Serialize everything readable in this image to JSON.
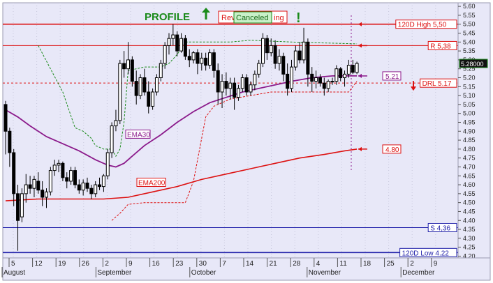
{
  "chart_data": {
    "type": "candlestick",
    "title": "",
    "annotations": {
      "profile": "PROFILE",
      "signal_old": "Rev",
      "signal_old_tail": "ing",
      "canceled": "Canceled",
      "exclaim": "!"
    },
    "colors": {
      "background": "#e8e8f8",
      "grid": "#c8c8dc",
      "ema30": "#8b1a8b",
      "ema200": "#dd1111",
      "resistance": "#dd1111",
      "support": "#2222aa",
      "green": "#1a8a1a",
      "candle": "#000000"
    },
    "ylim": [
      4.19,
      5.62
    ],
    "y_ticks": [
      4.2,
      4.25,
      4.3,
      4.35,
      4.4,
      4.45,
      4.5,
      4.55,
      4.6,
      4.65,
      4.7,
      4.75,
      4.8,
      4.85,
      4.9,
      4.95,
      5.0,
      5.05,
      5.1,
      5.15,
      5.2,
      5.25,
      5.3,
      5.35,
      5.4,
      5.45,
      5.5,
      5.55,
      5.6
    ],
    "x_ticks": [
      "5",
      "12",
      "19",
      "26",
      "2",
      "9",
      "16",
      "23",
      "30",
      "7",
      "14",
      "21",
      "28",
      "4",
      "11",
      "18",
      "25",
      "2",
      "9"
    ],
    "x_month_labels": [
      {
        "label": "August",
        "tick": 0
      },
      {
        "label": "September",
        "tick": 4
      },
      {
        "label": "October",
        "tick": 8
      },
      {
        "label": "November",
        "tick": 13
      },
      {
        "label": "December",
        "tick": 17
      }
    ],
    "levels": [
      {
        "name": "120D High",
        "label": "120D High 5,50",
        "value": 5.5,
        "style": "solid",
        "color": "#dd1111"
      },
      {
        "name": "R",
        "label": "R 5,38",
        "value": 5.38,
        "style": "solid",
        "color": "#dd1111"
      },
      {
        "name": "DRL",
        "label": "DRL 5.17",
        "value": 5.17,
        "style": "dashed",
        "color": "#dd1111"
      },
      {
        "name": "S",
        "label": "S 4,36",
        "value": 4.36,
        "style": "solid",
        "color": "#2222aa"
      },
      {
        "name": "120D Low",
        "label": "120D Low 4.22",
        "value": 4.22,
        "style": "solid",
        "color": "#2222aa"
      }
    ],
    "value_tags": [
      {
        "label": "5.21",
        "value": 5.21,
        "color": "#8b1a8b"
      },
      {
        "label": "4.80",
        "value": 4.8,
        "color": "#dd1111"
      }
    ],
    "last_price": {
      "label": "5.28000",
      "value": 5.28
    },
    "series_labels": [
      {
        "label": "EMA30",
        "value": 4.88
      },
      {
        "label": "EMA200",
        "value": 4.61
      }
    ],
    "ohlc": [
      [
        5.05,
        5.07,
        4.77,
        4.9
      ],
      [
        4.9,
        4.92,
        4.7,
        4.78
      ],
      [
        4.78,
        4.8,
        4.48,
        4.55
      ],
      [
        4.55,
        4.6,
        4.23,
        4.4
      ],
      [
        4.42,
        4.58,
        4.39,
        4.55
      ],
      [
        4.55,
        4.66,
        4.5,
        4.6
      ],
      [
        4.6,
        4.65,
        4.55,
        4.58
      ],
      [
        4.58,
        4.65,
        4.53,
        4.63
      ],
      [
        4.62,
        4.67,
        4.55,
        4.57
      ],
      [
        4.57,
        4.62,
        4.48,
        4.53
      ],
      [
        4.53,
        4.58,
        4.47,
        4.56
      ],
      [
        4.56,
        4.7,
        4.54,
        4.68
      ],
      [
        4.68,
        4.74,
        4.65,
        4.71
      ],
      [
        4.71,
        4.74,
        4.67,
        4.72
      ],
      [
        4.72,
        4.73,
        4.62,
        4.64
      ],
      [
        4.64,
        4.67,
        4.58,
        4.62
      ],
      [
        4.62,
        4.7,
        4.6,
        4.68
      ],
      [
        4.68,
        4.7,
        4.58,
        4.6
      ],
      [
        4.6,
        4.63,
        4.55,
        4.57
      ],
      [
        4.57,
        4.63,
        4.54,
        4.61
      ],
      [
        4.61,
        4.64,
        4.56,
        4.58
      ],
      [
        4.58,
        4.6,
        4.52,
        4.55
      ],
      [
        4.55,
        4.62,
        4.53,
        4.6
      ],
      [
        4.6,
        4.64,
        4.57,
        4.59
      ],
      [
        4.59,
        4.66,
        4.56,
        4.65
      ],
      [
        4.65,
        4.8,
        4.63,
        4.78
      ],
      [
        4.78,
        4.95,
        4.75,
        4.93
      ],
      [
        4.93,
        5.02,
        4.9,
        4.96
      ],
      [
        4.96,
        5.3,
        4.94,
        5.28
      ],
      [
        5.28,
        5.35,
        5.2,
        5.25
      ],
      [
        5.25,
        5.4,
        5.22,
        5.3
      ],
      [
        5.3,
        5.32,
        5.15,
        5.18
      ],
      [
        5.18,
        5.24,
        5.05,
        5.1
      ],
      [
        5.1,
        5.22,
        5.08,
        5.2
      ],
      [
        5.2,
        5.25,
        5.1,
        5.12
      ],
      [
        5.12,
        5.18,
        5.0,
        5.04
      ],
      [
        5.04,
        5.14,
        5.02,
        5.12
      ],
      [
        5.12,
        5.22,
        5.1,
        5.2
      ],
      [
        5.2,
        5.3,
        5.18,
        5.28
      ],
      [
        5.28,
        5.4,
        5.25,
        5.38
      ],
      [
        5.38,
        5.45,
        5.33,
        5.42
      ],
      [
        5.42,
        5.5,
        5.38,
        5.44
      ],
      [
        5.44,
        5.46,
        5.32,
        5.35
      ],
      [
        5.35,
        5.45,
        5.34,
        5.42
      ],
      [
        5.42,
        5.44,
        5.3,
        5.32
      ],
      [
        5.32,
        5.36,
        5.26,
        5.3
      ],
      [
        5.3,
        5.35,
        5.28,
        5.34
      ],
      [
        5.34,
        5.36,
        5.22,
        5.28
      ],
      [
        5.28,
        5.34,
        5.24,
        5.31
      ],
      [
        5.31,
        5.34,
        5.24,
        5.27
      ],
      [
        5.27,
        5.36,
        5.25,
        5.34
      ],
      [
        5.34,
        5.36,
        5.2,
        5.24
      ],
      [
        5.24,
        5.28,
        5.05,
        5.12
      ],
      [
        5.12,
        5.22,
        5.03,
        5.18
      ],
      [
        5.18,
        5.23,
        5.1,
        5.14
      ],
      [
        5.14,
        5.2,
        5.08,
        5.17
      ],
      [
        5.17,
        5.2,
        5.02,
        5.09
      ],
      [
        5.09,
        5.16,
        5.07,
        5.14
      ],
      [
        5.14,
        5.22,
        5.12,
        5.2
      ],
      [
        5.2,
        5.22,
        5.1,
        5.12
      ],
      [
        5.12,
        5.18,
        5.1,
        5.16
      ],
      [
        5.16,
        5.24,
        5.13,
        5.22
      ],
      [
        5.22,
        5.3,
        5.2,
        5.28
      ],
      [
        5.28,
        5.45,
        5.26,
        5.42
      ],
      [
        5.42,
        5.44,
        5.3,
        5.34
      ],
      [
        5.34,
        5.42,
        5.32,
        5.38
      ],
      [
        5.38,
        5.41,
        5.25,
        5.28
      ],
      [
        5.28,
        5.36,
        5.24,
        5.32
      ],
      [
        5.32,
        5.34,
        5.18,
        5.22
      ],
      [
        5.22,
        5.28,
        5.1,
        5.14
      ],
      [
        5.14,
        5.3,
        5.12,
        5.26
      ],
      [
        5.26,
        5.38,
        5.24,
        5.35
      ],
      [
        5.35,
        5.4,
        5.28,
        5.3
      ],
      [
        5.3,
        5.48,
        5.28,
        5.4
      ],
      [
        5.4,
        5.42,
        5.15,
        5.22
      ],
      [
        5.22,
        5.26,
        5.12,
        5.18
      ],
      [
        5.18,
        5.24,
        5.14,
        5.2
      ],
      [
        5.2,
        5.22,
        5.15,
        5.17
      ],
      [
        5.17,
        5.2,
        5.1,
        5.14
      ],
      [
        5.14,
        5.19,
        5.12,
        5.18
      ],
      [
        5.18,
        5.2,
        5.16,
        5.18
      ],
      [
        5.18,
        5.27,
        5.16,
        5.25
      ],
      [
        5.25,
        5.26,
        5.18,
        5.2
      ],
      [
        5.2,
        5.24,
        5.15,
        5.22
      ],
      [
        5.22,
        5.3,
        5.2,
        5.27
      ],
      [
        5.27,
        5.3,
        5.22,
        5.23
      ],
      [
        5.23,
        5.29,
        5.22,
        5.28
      ]
    ],
    "ema30": [
      [
        0,
        5.02
      ],
      [
        3,
        4.98
      ],
      [
        6,
        4.93
      ],
      [
        10,
        4.87
      ],
      [
        14,
        4.83
      ],
      [
        18,
        4.79
      ],
      [
        22,
        4.74
      ],
      [
        25,
        4.71
      ],
      [
        27,
        4.7
      ],
      [
        29,
        4.72
      ],
      [
        31,
        4.76
      ],
      [
        34,
        4.82
      ],
      [
        38,
        4.88
      ],
      [
        42,
        4.95
      ],
      [
        46,
        5.01
      ],
      [
        50,
        5.06
      ],
      [
        54,
        5.09
      ],
      [
        58,
        5.12
      ],
      [
        62,
        5.14
      ],
      [
        66,
        5.16
      ],
      [
        70,
        5.18
      ],
      [
        75,
        5.2
      ],
      [
        80,
        5.21
      ],
      [
        86,
        5.21
      ]
    ],
    "ema200": [
      [
        0,
        4.51
      ],
      [
        8,
        4.52
      ],
      [
        16,
        4.52
      ],
      [
        24,
        4.52
      ],
      [
        30,
        4.53
      ],
      [
        36,
        4.56
      ],
      [
        42,
        4.59
      ],
      [
        48,
        4.63
      ],
      [
        54,
        4.66
      ],
      [
        60,
        4.69
      ],
      [
        66,
        4.72
      ],
      [
        72,
        4.75
      ],
      [
        78,
        4.77
      ],
      [
        83,
        4.79
      ],
      [
        86,
        4.8
      ]
    ],
    "stop_green": [
      [
        8,
        5.38
      ],
      [
        11,
        5.25
      ],
      [
        14,
        5.12
      ],
      [
        17,
        4.92
      ],
      [
        19,
        4.9
      ],
      [
        21,
        4.86
      ],
      [
        22,
        4.82
      ],
      [
        24,
        4.8
      ],
      [
        26,
        4.8
      ],
      [
        27,
        4.76
      ],
      [
        28,
        4.8
      ],
      [
        29,
        4.95
      ],
      [
        30,
        5.24
      ],
      [
        34,
        5.26
      ],
      [
        38,
        5.26
      ],
      [
        40,
        5.28
      ],
      [
        42,
        5.33
      ],
      [
        44,
        5.4
      ],
      [
        55,
        5.4
      ],
      [
        60,
        5.41
      ],
      [
        70,
        5.4
      ],
      [
        86,
        5.39
      ]
    ],
    "stop_red": [
      [
        26,
        4.4
      ],
      [
        28,
        4.44
      ],
      [
        30,
        4.49
      ],
      [
        34,
        4.5
      ],
      [
        44,
        4.5
      ],
      [
        46,
        4.62
      ],
      [
        49,
        4.98
      ],
      [
        51,
        5.04
      ],
      [
        55,
        5.08
      ],
      [
        60,
        5.1
      ],
      [
        65,
        5.12
      ],
      [
        72,
        5.12
      ],
      [
        84,
        5.12
      ],
      [
        86,
        5.18
      ]
    ]
  }
}
